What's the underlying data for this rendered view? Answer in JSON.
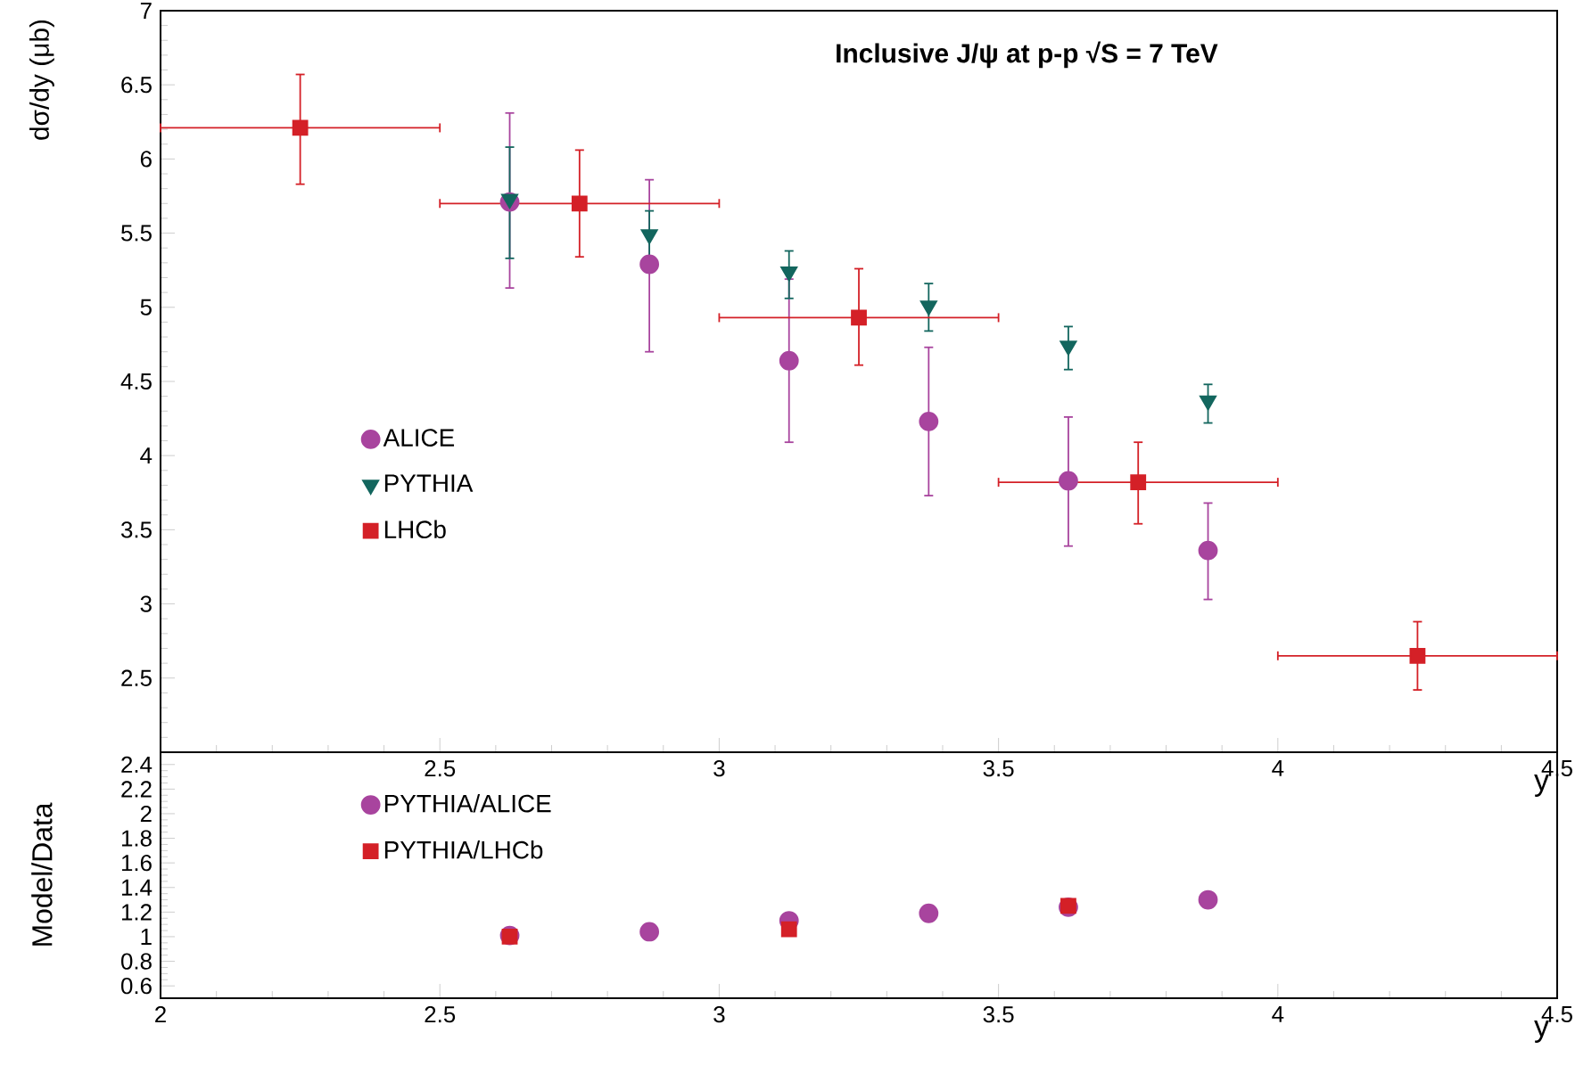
{
  "chart_data": [
    {
      "type": "scatter",
      "title": "Inclusive J/ψ at p-p √S = 7 TeV",
      "xlabel": "y",
      "ylabel": "dσ/dy  (μb)",
      "xlim": [
        2,
        4.5
      ],
      "ylim": [
        2,
        7
      ],
      "xticks": [
        {
          "value": 2,
          "label": null
        },
        2.5,
        3,
        3.5,
        4,
        4.5
      ],
      "yticks": [
        {
          "value": 2,
          "label": null
        },
        2.5,
        3,
        3.5,
        4,
        4.5,
        5,
        5.5,
        6,
        6.5,
        7
      ],
      "legend": "left",
      "grid": false,
      "series": [
        {
          "name": "ALICE",
          "color": "#a8449e",
          "marker": "circle",
          "x": [
            2.625,
            2.875,
            3.125,
            3.375,
            3.625,
            3.875
          ],
          "values": [
            5.71,
            5.29,
            4.64,
            4.23,
            3.83,
            3.36
          ],
          "errors": [
            [
              5.13,
              6.31
            ],
            [
              4.7,
              5.86
            ],
            [
              4.09,
              5.19
            ],
            [
              3.73,
              4.73
            ],
            [
              3.39,
              4.26
            ],
            [
              3.03,
              3.68
            ]
          ]
        },
        {
          "name": "PYTHIA",
          "color": "#13665e",
          "marker": "triangle",
          "x": [
            2.625,
            2.875,
            3.125,
            3.375,
            3.625,
            3.875
          ],
          "values": [
            5.73,
            5.49,
            5.24,
            5.01,
            4.74,
            4.37
          ],
          "errors": [
            [
              5.33,
              6.08
            ],
            [
              5.31,
              5.65
            ],
            [
              5.06,
              5.38
            ],
            [
              4.84,
              5.16
            ],
            [
              4.58,
              4.87
            ],
            [
              4.22,
              4.48
            ]
          ]
        },
        {
          "name": "LHCb",
          "color": "#d42027",
          "marker": "square",
          "x": [
            2.25,
            2.75,
            3.25,
            3.75,
            4.25
          ],
          "values": [
            6.21,
            5.7,
            4.93,
            3.82,
            2.65
          ],
          "errors": [
            [
              5.83,
              6.57
            ],
            [
              5.34,
              6.06
            ],
            [
              4.61,
              5.26
            ],
            [
              3.54,
              4.09
            ],
            [
              2.42,
              2.88
            ]
          ],
          "xerrors": [
            0.25,
            0.25,
            0.25,
            0.25,
            0.25
          ]
        }
      ]
    },
    {
      "type": "scatter",
      "xlabel": "y",
      "ylabel": "Model/Data",
      "xlim": [
        2,
        4.5
      ],
      "ylim": [
        0.5,
        2.5
      ],
      "xticks": [
        2,
        2.5,
        3,
        3.5,
        4,
        4.5
      ],
      "yticks": [
        0.6,
        0.8,
        1,
        1.2,
        1.4,
        1.6,
        1.8,
        2,
        2.2,
        2.4
      ],
      "legend": "top left",
      "grid": false,
      "series": [
        {
          "name": "PYTHIA/ALICE",
          "color": "#a8449e",
          "marker": "circle",
          "x": [
            2.625,
            2.875,
            3.125,
            3.375,
            3.625,
            3.875
          ],
          "values": [
            1.01,
            1.04,
            1.13,
            1.19,
            1.24,
            1.3
          ]
        },
        {
          "name": "PYTHIA/LHCb",
          "color": "#d42027",
          "marker": "square",
          "x": [
            2.625,
            3.125,
            3.625
          ],
          "values": [
            1.0,
            1.06,
            1.25
          ]
        }
      ]
    }
  ]
}
